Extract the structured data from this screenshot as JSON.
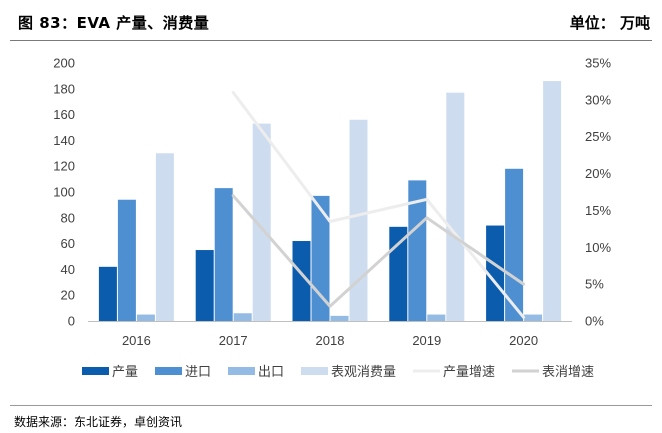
{
  "header": {
    "title": "图 83：EVA 产量、消费量",
    "unit": "单位： 万吨"
  },
  "source": "数据来源：东北证券，卓创资讯",
  "chart_data": {
    "type": "bar",
    "categories": [
      "2016",
      "2017",
      "2018",
      "2019",
      "2020"
    ],
    "series": [
      {
        "name": "产量",
        "kind": "bar",
        "axis": "left",
        "color": "#0b5cad",
        "values": [
          42,
          55,
          62,
          73,
          74
        ]
      },
      {
        "name": "进口",
        "kind": "bar",
        "axis": "left",
        "color": "#4e8fd1",
        "values": [
          94,
          103,
          97,
          109,
          118
        ]
      },
      {
        "name": "出口",
        "kind": "bar",
        "axis": "left",
        "color": "#93bbe3",
        "values": [
          5,
          6,
          4,
          5,
          5
        ]
      },
      {
        "name": "表观消费量",
        "kind": "bar",
        "axis": "left",
        "color": "#cddcee",
        "values": [
          130,
          153,
          156,
          177,
          186
        ]
      },
      {
        "name": "产量增速",
        "kind": "line",
        "axis": "right",
        "color": "#ededed",
        "values": [
          null,
          31.0,
          13.5,
          16.5,
          0.5
        ]
      },
      {
        "name": "表消增速",
        "kind": "line",
        "axis": "right",
        "color": "#d2d2d2",
        "values": [
          null,
          17.0,
          2.0,
          14.0,
          5.0
        ]
      }
    ],
    "ylim_left": [
      0,
      200
    ],
    "yticks_left": [
      "0",
      "20",
      "40",
      "60",
      "80",
      "100",
      "120",
      "140",
      "160",
      "180",
      "200"
    ],
    "ylim_right": [
      0,
      35
    ],
    "yticks_right": [
      "0%",
      "5%",
      "10%",
      "15%",
      "20%",
      "25%",
      "30%",
      "35%"
    ],
    "legend_position": "bottom"
  }
}
